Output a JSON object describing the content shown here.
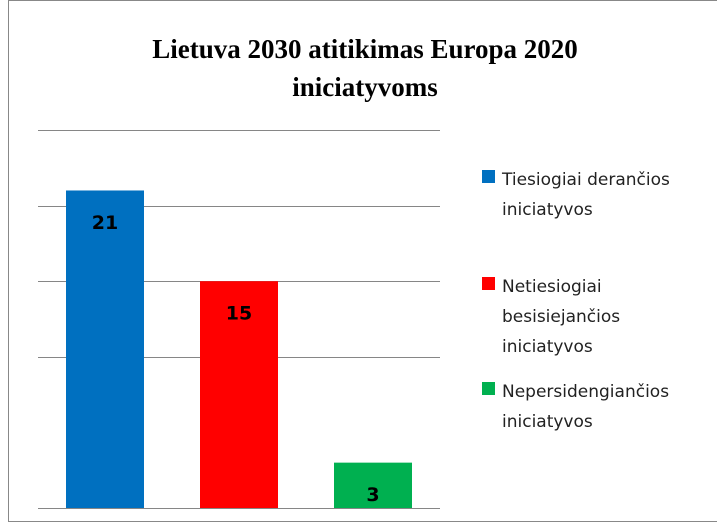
{
  "chart_data": {
    "type": "bar",
    "title": "Lietuva 2030 atitikimas Europa 2020 iniciatyvoms",
    "series": [
      {
        "name": "Tiesiogiai derančios iniciatyvos",
        "color": "#0070c0",
        "values": [
          21
        ]
      },
      {
        "name": "Netiesiogiai besisiejančios iniciatyvos",
        "color": "#ff0000",
        "values": [
          15
        ]
      },
      {
        "name": "Nepersidengiančios iniciatyvos",
        "color": "#00b050",
        "values": [
          3
        ]
      }
    ],
    "ylim": [
      0,
      25
    ],
    "yticks": [
      0,
      10,
      15,
      20,
      25
    ],
    "grid": true,
    "legend": "right"
  }
}
